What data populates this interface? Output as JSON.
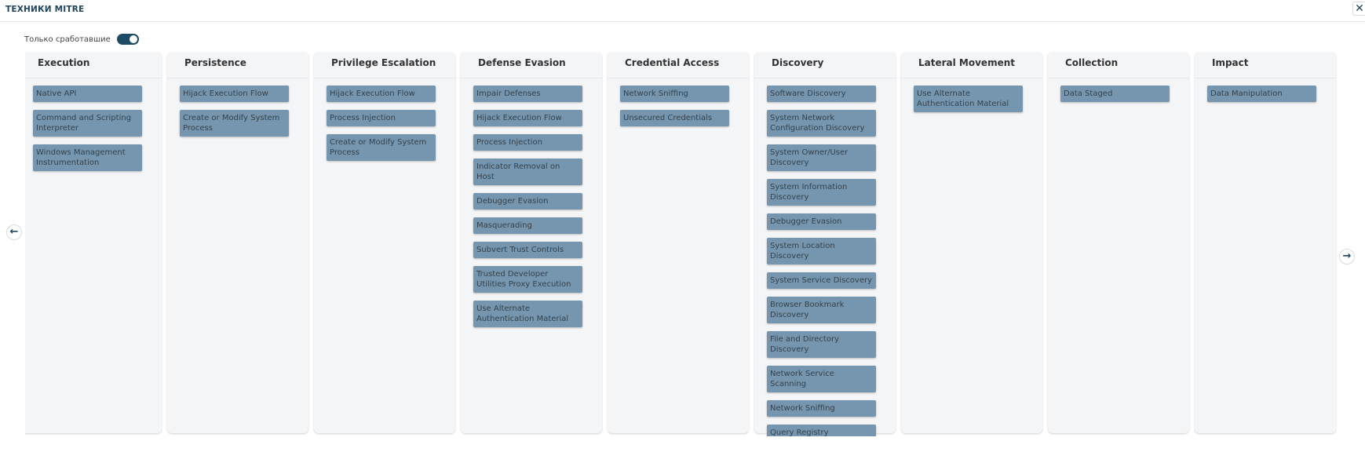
{
  "header": {
    "title": "ТЕХНИКИ MITRE",
    "close_icon": "close-icon"
  },
  "filter": {
    "label": "Только сработавшие",
    "toggle_on": true
  },
  "nav": {
    "prev_icon": "arrow-left-icon",
    "next_icon": "arrow-right-icon"
  },
  "colors": {
    "technique_bg": "#7596ae",
    "accent": "#1e4a66",
    "column_bg": "#f4f5f7"
  },
  "tactics": [
    {
      "name": "Execution",
      "techniques": [
        "Native API",
        "Command and Scripting Interpreter",
        "Windows Management Instrumentation"
      ]
    },
    {
      "name": "Persistence",
      "techniques": [
        "Hijack Execution Flow",
        "Create or Modify System Process"
      ]
    },
    {
      "name": "Privilege Escalation",
      "techniques": [
        "Hijack Execution Flow",
        "Process Injection",
        "Create or Modify System Process"
      ]
    },
    {
      "name": "Defense Evasion",
      "techniques": [
        "Impair Defenses",
        "Hijack Execution Flow",
        "Process Injection",
        "Indicator Removal on Host",
        "Debugger Evasion",
        "Masquerading",
        "Subvert Trust Controls",
        "Trusted Developer Utilities Proxy Execution",
        "Use Alternate Authentication Material"
      ]
    },
    {
      "name": "Credential Access",
      "techniques": [
        "Network Sniffing",
        "Unsecured Credentials"
      ]
    },
    {
      "name": "Discovery",
      "techniques": [
        "Software Discovery",
        "System Network Configuration Discovery",
        "System Owner/User Discovery",
        "System Information Discovery",
        "Debugger Evasion",
        "System Location Discovery",
        "System Service Discovery",
        "Browser Bookmark Discovery",
        "File and Directory Discovery",
        "Network Service Scanning",
        "Network Sniffing",
        "Query Registry"
      ]
    },
    {
      "name": "Lateral Movement",
      "techniques": [
        "Use Alternate Authentication Material"
      ]
    },
    {
      "name": "Collection",
      "techniques": [
        "Data Staged"
      ]
    },
    {
      "name": "Impact",
      "techniques": [
        "Data Manipulation"
      ]
    }
  ]
}
